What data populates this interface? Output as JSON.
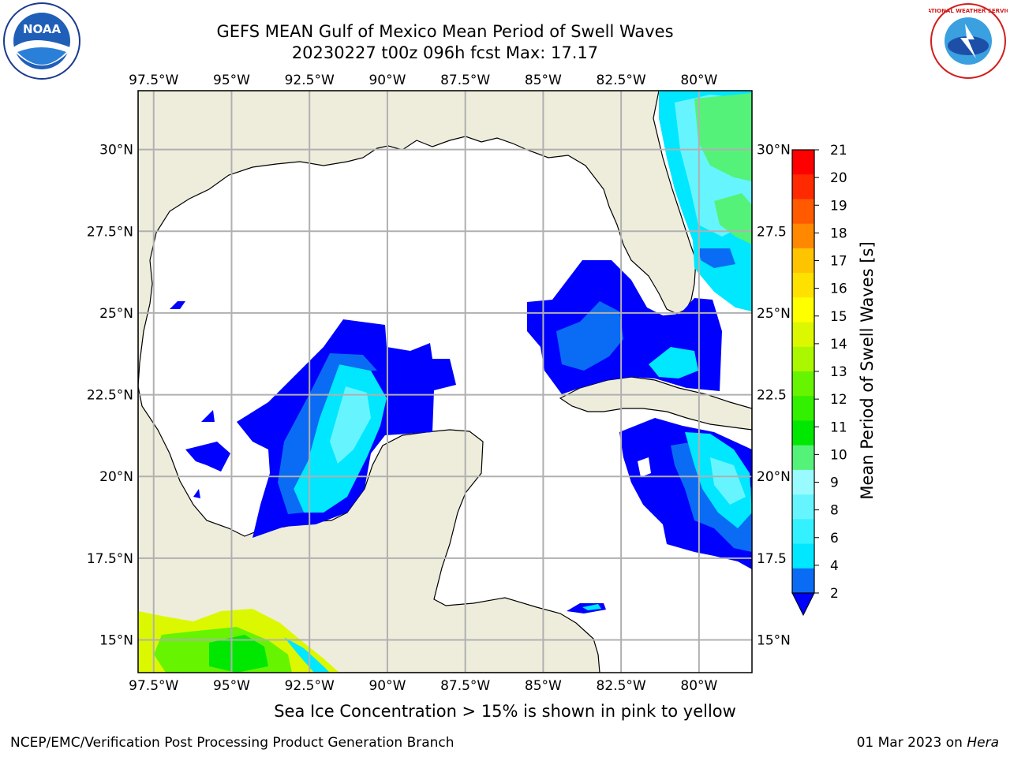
{
  "title": {
    "line1": "GEFS MEAN Gulf of Mexico Mean Period of Swell Waves",
    "line2": "20230227 t00z 096h fcst   Max: 17.17"
  },
  "map": {
    "lon_labels": [
      "97.5°W",
      "95°W",
      "92.5°W",
      "90°W",
      "87.5°W",
      "85°W",
      "82.5°W",
      "80°W"
    ],
    "lat_labels_left": [
      "30°N",
      "27.5°N",
      "25°N",
      "22.5°N",
      "20°N",
      "17.5°N",
      "15°N"
    ],
    "lat_labels_right": [
      "30°N",
      "27.5",
      "25°N",
      "22.5",
      "20°N",
      "17.5",
      "15°N"
    ],
    "lon_values": [
      -97.5,
      -95,
      -92.5,
      -90,
      -87.5,
      -85,
      -82.5,
      -80
    ],
    "lat_values": [
      30,
      27.5,
      25,
      22.5,
      20,
      17.5,
      15
    ],
    "extent": {
      "lon_min": -98,
      "lon_max": -78.3,
      "lat_min": 14,
      "lat_max": 31.8
    },
    "land_color": "#eeeddc",
    "ocean_color": "#ffffff",
    "grid_color": "#b0b0b0"
  },
  "colorbar": {
    "label": "Mean Period of Swell Waves [s]",
    "tick_labels": [
      "2",
      "4",
      "6",
      "8",
      "9",
      "10",
      "11",
      "12",
      "13",
      "14",
      "15",
      "16",
      "17",
      "18",
      "19",
      "20",
      "21"
    ],
    "colors": [
      "#0a6cf5",
      "#00e7ff",
      "#33f1ff",
      "#66f5ff",
      "#99fbff",
      "#55f27a",
      "#00e800",
      "#33ef00",
      "#66f400",
      "#aaf700",
      "#dcf800",
      "#ffff00",
      "#ffe100",
      "#ffc400",
      "#ff8800",
      "#ff5a00",
      "#ff2a00",
      "#ff0000"
    ],
    "under_color": "#0000ff"
  },
  "ice_note": "Sea Ice Concentration > 15% is shown in pink to yellow",
  "footer": {
    "left": "NCEP/EMC/Verification Post Processing Product Generation Branch",
    "right_date": "01 Mar 2023 on",
    "right_host": "Hera"
  },
  "logos": {
    "noaa_text": "NOAA",
    "nws_text": "NATIONAL WEATHER SERVICE"
  }
}
